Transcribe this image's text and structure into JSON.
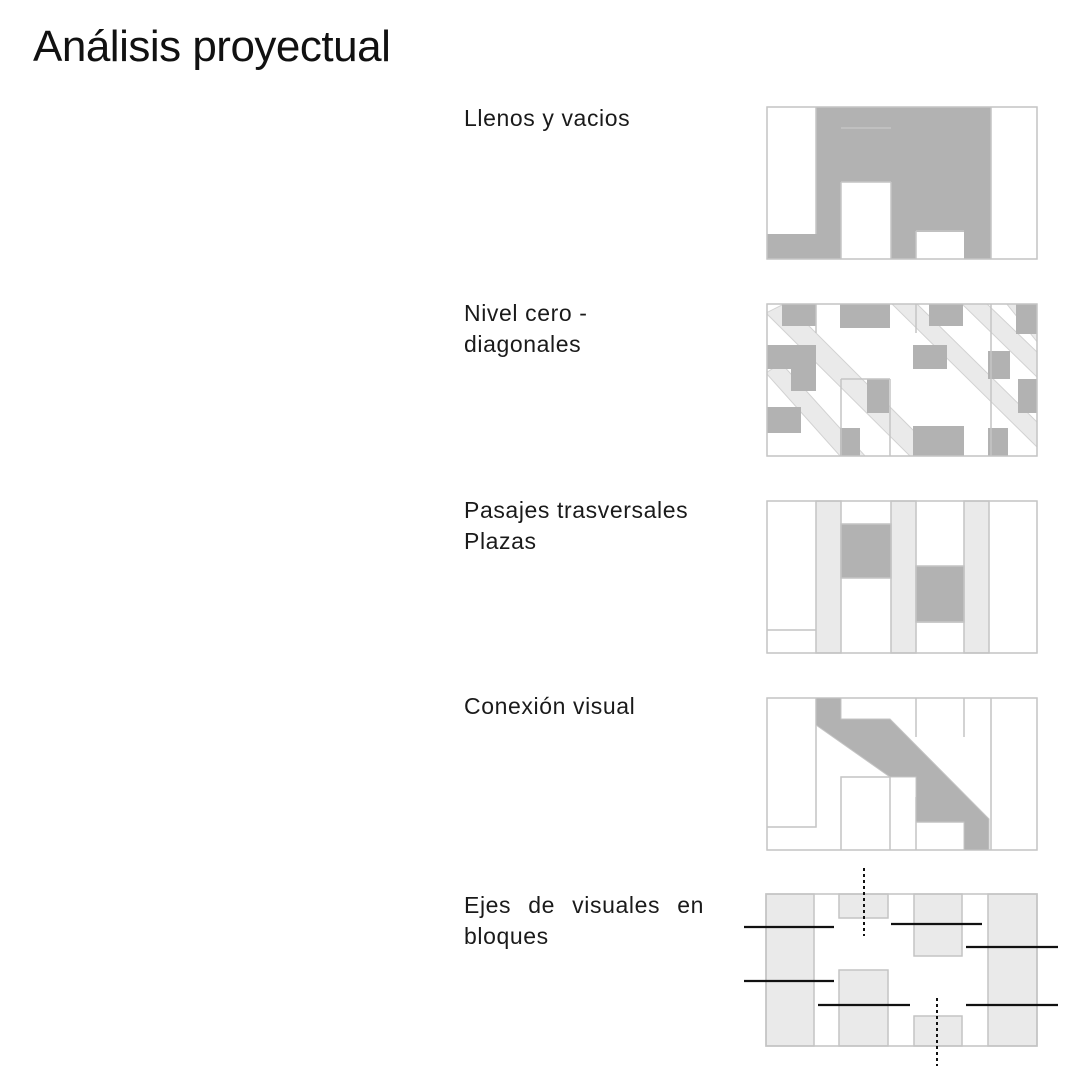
{
  "title": "Análisis proyectual",
  "palette": {
    "stroke": "#c4c4c4",
    "fill_dark": "#b2b2b2",
    "fill_light": "#eaeaea",
    "axis_line": "#111111"
  },
  "sections": [
    {
      "id": "llenos",
      "lines": [
        "Llenos y vacios"
      ]
    },
    {
      "id": "nivel-cero",
      "lines": [
        "Nivel cero - diagonales"
      ]
    },
    {
      "id": "pasajes",
      "lines": [
        "Pasajes trasversales",
        "Plazas"
      ]
    },
    {
      "id": "conexion",
      "lines": [
        "Conexión visual"
      ]
    },
    {
      "id": "ejes",
      "lines": [
        "Ejes de visuales en",
        "bloques"
      ]
    }
  ]
}
